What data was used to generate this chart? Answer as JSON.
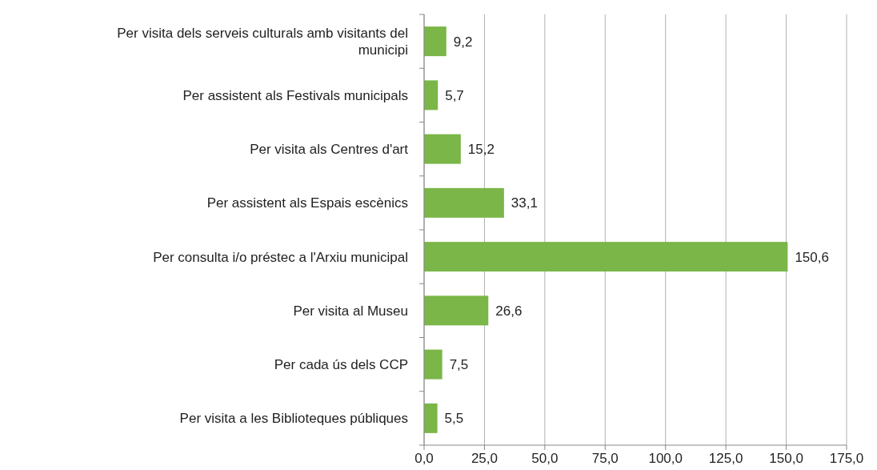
{
  "chart_data": {
    "type": "bar",
    "orientation": "horizontal",
    "categories": [
      "Per visita dels serveis culturals amb visitants del municipi",
      "Per assistent als Festivals municipals",
      "Per visita als Centres d'art",
      "Per assistent als Espais escènics",
      "Per consulta i/o préstec a l'Arxiu municipal",
      "Per visita al Museu",
      "Per cada ús dels CCP",
      "Per visita a les Biblioteques públiques"
    ],
    "values": [
      9.2,
      5.7,
      15.2,
      33.1,
      150.6,
      26.6,
      7.5,
      5.5
    ],
    "value_labels": [
      "9,2",
      "5,7",
      "15,2",
      "33,1",
      "150,6",
      "26,6",
      "7,5",
      "5,5"
    ],
    "color": "#7ab648",
    "xlim": [
      0,
      175
    ],
    "xticks": [
      {
        "value": 0,
        "label": "0,0"
      },
      {
        "value": 25,
        "label": "25,0"
      },
      {
        "value": 50,
        "label": "50,0"
      },
      {
        "value": 75,
        "label": "75,0"
      },
      {
        "value": 100,
        "label": "100,0"
      },
      {
        "value": 125,
        "label": "125,0"
      },
      {
        "value": 150,
        "label": "150,0"
      },
      {
        "value": 175,
        "label": "175,0"
      }
    ],
    "grid": "x"
  }
}
